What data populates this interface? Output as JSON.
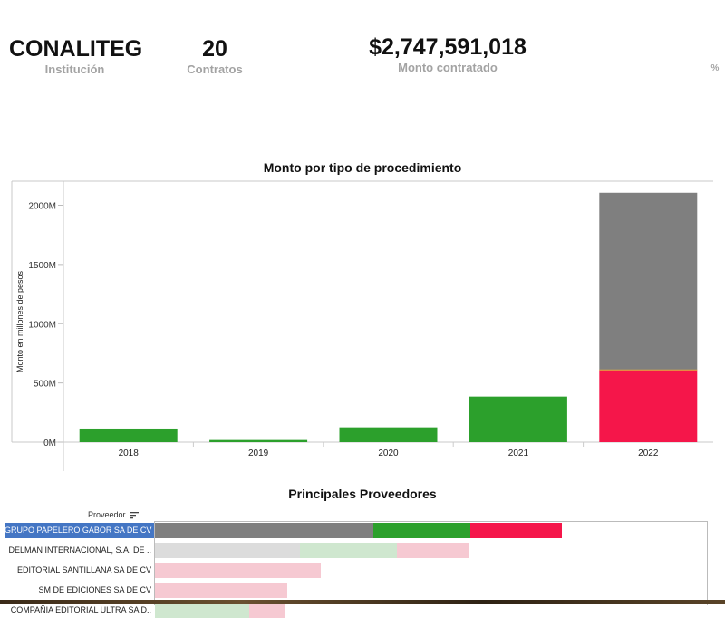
{
  "kpis": {
    "institucion": {
      "value": "CONALITEG",
      "label": "Institución"
    },
    "contratos": {
      "value": "20",
      "label": "Contratos"
    },
    "monto": {
      "value": "$2,747,591,018",
      "label": "Monto contratado"
    },
    "porcentaje": {
      "label": "%"
    }
  },
  "chart1": {
    "title": "Monto por tipo de procedimiento"
  },
  "chart_data": {
    "type": "bar",
    "title": "Monto por tipo de procedimiento",
    "xlabel": "",
    "ylabel": "Monto en millones de pesos",
    "categories": [
      "2018",
      "2019",
      "2020",
      "2021",
      "2022"
    ],
    "series": [
      {
        "values": [
          115,
          18,
          125,
          385,
          0
        ],
        "color": "#2ca02c"
      },
      {
        "values": [
          0,
          0,
          0,
          0,
          610
        ],
        "color": "#f5164a"
      },
      {
        "values": [
          0,
          0,
          0,
          0,
          1495
        ],
        "color": "#7f7f7f"
      }
    ],
    "yticks": [
      "0M",
      "500M",
      "1000M",
      "1500M",
      "2000M"
    ],
    "ylim": [
      0,
      2200
    ],
    "grid": false,
    "stacked": true
  },
  "chart2": {
    "title": "Principales Proveedores",
    "header": "Proveedor",
    "rows": [
      {
        "label": "GRUPO PAPELERO GABOR SA DE CV",
        "selected": true,
        "segments": [
          {
            "color": "#7f7f7f",
            "value": 0.395
          },
          {
            "color": "#2ca02c",
            "value": 0.176
          },
          {
            "color": "#f5164a",
            "value": 0.167
          }
        ]
      },
      {
        "label": "DELMAN INTERNACIONAL, S.A. DE ..",
        "selected": false,
        "segments": [
          {
            "color": "#dcdcdc",
            "value": 0.262
          },
          {
            "color": "#cfe7cf",
            "value": 0.176
          },
          {
            "color": "#f6c9d2",
            "value": 0.132
          }
        ]
      },
      {
        "label": "EDITORIAL SANTILLANA SA DE CV",
        "selected": false,
        "segments": [
          {
            "color": "#f6c9d2",
            "value": 0.301
          }
        ]
      },
      {
        "label": "SM DE EDICIONES SA DE CV",
        "selected": false,
        "segments": [
          {
            "color": "#f6c9d2",
            "value": 0.239
          }
        ]
      },
      {
        "label": "COMPAÑIA EDITORIAL ULTRA SA D..",
        "selected": false,
        "segments": [
          {
            "color": "#cfe7cf",
            "value": 0.17
          },
          {
            "color": "#f6c9d2",
            "value": 0.066
          }
        ]
      }
    ]
  }
}
